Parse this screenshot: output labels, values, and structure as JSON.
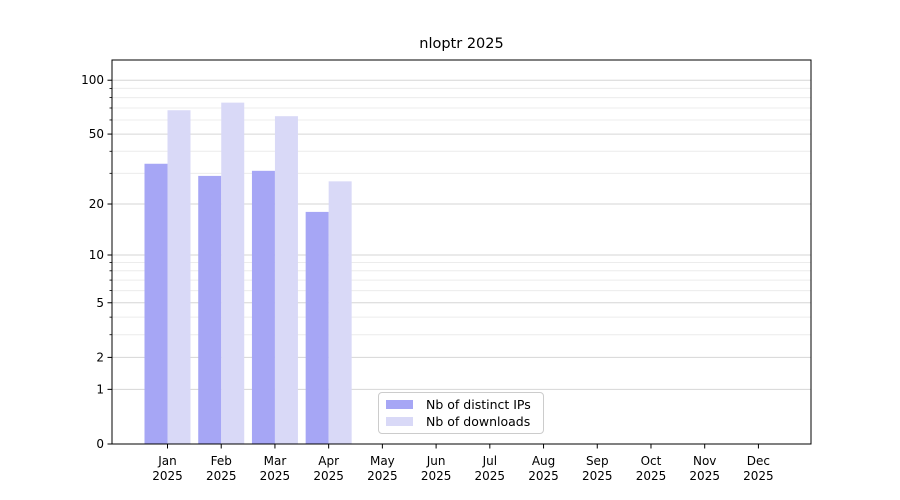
{
  "chart_data": {
    "type": "bar",
    "title": "nloptr 2025",
    "x_months": [
      "Jan",
      "Feb",
      "Mar",
      "Apr",
      "May",
      "Jun",
      "Jul",
      "Aug",
      "Sep",
      "Oct",
      "Nov",
      "Dec"
    ],
    "x_year": "2025",
    "series": [
      {
        "name": "Nb of distinct IPs",
        "color": "#a6a6f5",
        "values": [
          34,
          29,
          31,
          18,
          null,
          null,
          null,
          null,
          null,
          null,
          null,
          null
        ]
      },
      {
        "name": "Nb of downloads",
        "color": "#d9d9f7",
        "values": [
          68,
          75,
          63,
          27,
          null,
          null,
          null,
          null,
          null,
          null,
          null,
          null
        ]
      }
    ],
    "y_scale": "log1p",
    "y_ticks": [
      100,
      50,
      20,
      10,
      5,
      2,
      1,
      0
    ],
    "y_minor_grid": [
      3,
      4,
      6,
      7,
      8,
      9,
      30,
      40,
      60,
      70,
      80,
      90
    ],
    "ylim": [
      0,
      130
    ],
    "grid": true,
    "legend_position": "bottom-center",
    "colors": {
      "spine": "#000000",
      "major_grid": "#d6d6d6",
      "minor_grid": "#ececec",
      "tick_label": "#000000"
    }
  }
}
